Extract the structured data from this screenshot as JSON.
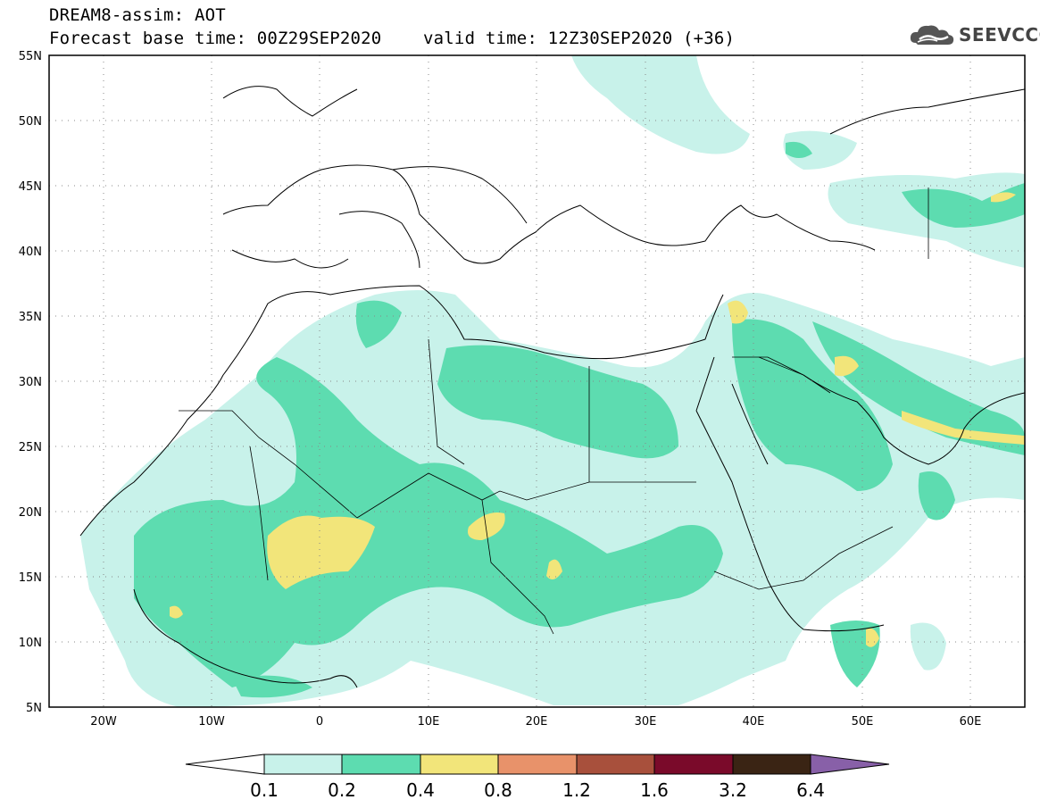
{
  "header": {
    "line1": "DREAM8-assim: AOT",
    "line2_base": "Forecast base time: 00Z29SEP2020",
    "line2_valid": "valid time: 12Z30SEP2020 (+36)"
  },
  "brand": {
    "name": "SEEVCCC",
    "icon": "cloud-logo-icon"
  },
  "map": {
    "lon_range": [
      -25,
      65
    ],
    "lat_range": [
      5,
      55
    ],
    "lat_ticks": [
      "55N",
      "50N",
      "45N",
      "40N",
      "35N",
      "30N",
      "25N",
      "20N",
      "15N",
      "10N",
      "5N"
    ],
    "lon_ticks": [
      "20W",
      "10W",
      "0",
      "10E",
      "20E",
      "30E",
      "40E",
      "50E",
      "60E"
    ],
    "grid": "dotted"
  },
  "colorbar": {
    "labels": [
      "0.1",
      "0.2",
      "0.4",
      "0.8",
      "1.2",
      "1.6",
      "3.2",
      "6.4"
    ],
    "colors": [
      "#ffffff",
      "#c8f2ea",
      "#5ddcb0",
      "#f2e57a",
      "#e8926a",
      "#a8503c",
      "#7a0a2a",
      "#3a2414",
      "#8860a8"
    ]
  }
}
